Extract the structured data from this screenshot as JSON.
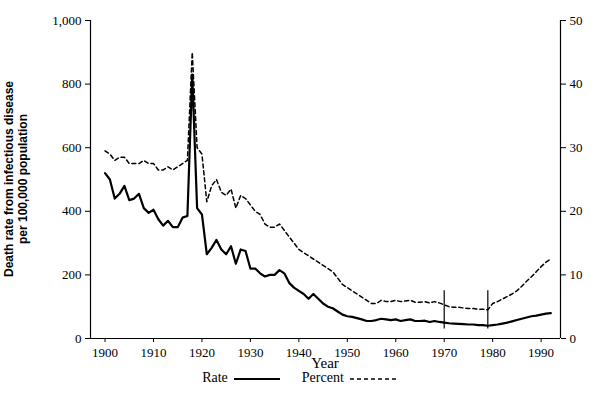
{
  "chart_data": {
    "type": "line",
    "x_label": "Year",
    "y_label": "Death rate from infectious disease\nper 100,000 population",
    "x": [
      1900,
      1901,
      1902,
      1903,
      1904,
      1905,
      1906,
      1907,
      1908,
      1909,
      1910,
      1911,
      1912,
      1913,
      1914,
      1915,
      1916,
      1917,
      1918,
      1919,
      1920,
      1921,
      1922,
      1923,
      1924,
      1925,
      1926,
      1927,
      1928,
      1929,
      1930,
      1931,
      1932,
      1933,
      1934,
      1935,
      1936,
      1937,
      1938,
      1939,
      1940,
      1941,
      1942,
      1943,
      1944,
      1945,
      1946,
      1947,
      1948,
      1949,
      1950,
      1951,
      1952,
      1953,
      1954,
      1955,
      1956,
      1957,
      1958,
      1959,
      1960,
      1961,
      1962,
      1963,
      1964,
      1965,
      1966,
      1967,
      1968,
      1969,
      1970,
      1971,
      1972,
      1973,
      1974,
      1975,
      1976,
      1977,
      1978,
      1979,
      1980,
      1981,
      1982,
      1983,
      1984,
      1985,
      1986,
      1987,
      1988,
      1989,
      1990,
      1991,
      1992
    ],
    "series": [
      {
        "name": "Rate",
        "color": "#000000",
        "line_style": "solid",
        "values": [
          520,
          500,
          440,
          455,
          480,
          435,
          440,
          455,
          410,
          395,
          405,
          375,
          355,
          370,
          350,
          350,
          380,
          385,
          830,
          410,
          390,
          265,
          285,
          310,
          280,
          265,
          290,
          235,
          280,
          275,
          220,
          220,
          205,
          195,
          200,
          200,
          215,
          205,
          175,
          160,
          150,
          140,
          125,
          140,
          125,
          110,
          100,
          95,
          85,
          75,
          70,
          68,
          64,
          60,
          55,
          55,
          58,
          62,
          60,
          58,
          60,
          55,
          58,
          60,
          55,
          55,
          56,
          52,
          55,
          52,
          50,
          48,
          47,
          46,
          45,
          44,
          44,
          42,
          42,
          40,
          42,
          44,
          47,
          50,
          54,
          58,
          62,
          66,
          70,
          72,
          75,
          78,
          80
        ]
      },
      {
        "name": "Percent",
        "color": "#000000",
        "line_style": "dashed",
        "axis": "y2",
        "values": [
          29.5,
          29,
          28,
          28.5,
          28.5,
          27.5,
          27.5,
          27.5,
          28,
          27.5,
          27.5,
          26.5,
          26.5,
          27,
          26.5,
          27,
          27.5,
          28,
          45,
          30,
          29,
          21.5,
          24,
          25,
          23,
          22.5,
          23.5,
          20.5,
          22.5,
          22,
          21,
          20,
          19.5,
          18,
          17.5,
          17.5,
          18,
          17,
          16,
          15,
          14,
          13.5,
          13,
          12.5,
          12,
          11.5,
          11,
          10.5,
          9.5,
          8.5,
          8,
          7.5,
          7,
          6.5,
          6,
          5.5,
          5.5,
          6,
          5.8,
          5.8,
          6,
          5.8,
          5.9,
          6,
          5.7,
          5.7,
          5.8,
          5.6,
          5.8,
          5.6,
          5.3,
          5,
          4.9,
          4.9,
          4.8,
          4.7,
          4.7,
          4.6,
          4.6,
          4.5,
          5.5,
          5.8,
          6.2,
          6.6,
          7,
          7.5,
          8.2,
          9,
          9.7,
          10.5,
          11.3,
          12,
          12.5
        ]
      }
    ],
    "breaks": [
      {
        "x": 1970,
        "y1": 30,
        "y2": 150
      },
      {
        "x": 1979,
        "y1": 30,
        "y2": 150
      }
    ],
    "xlim": [
      1897,
      1994
    ],
    "xticks": [
      1900,
      1910,
      1920,
      1930,
      1940,
      1950,
      1960,
      1970,
      1980,
      1990
    ],
    "ylim": [
      0,
      1000
    ],
    "yticks": [
      0,
      200,
      400,
      600,
      800,
      {
        "value": 1000,
        "label": "1,000"
      }
    ],
    "y2lim": [
      0,
      50
    ],
    "y2ticks": [
      0,
      10,
      20,
      30,
      40,
      50
    ],
    "grid": false,
    "legend": "bottom"
  }
}
